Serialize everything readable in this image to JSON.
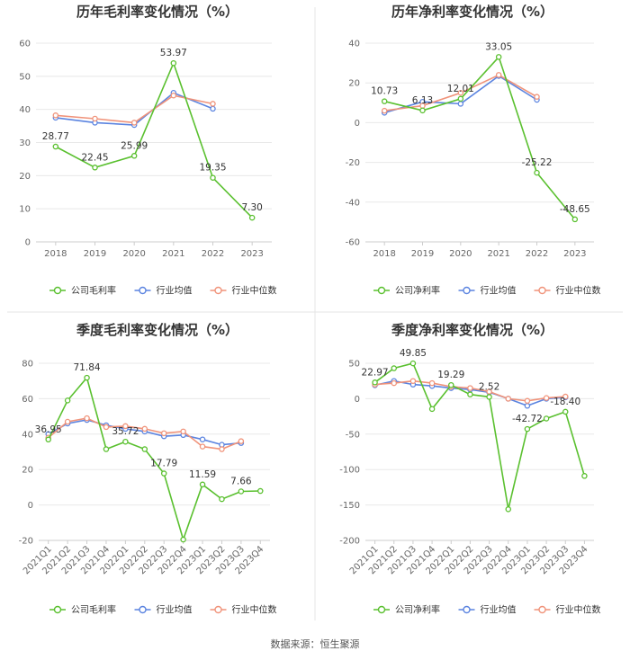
{
  "chart_data": [
    {
      "type": "line",
      "title": "历年毛利率变化情况（%）",
      "categories": [
        "2018",
        "2019",
        "2020",
        "2021",
        "2022",
        "2023"
      ],
      "ylim": [
        0,
        60
      ],
      "yticks": [
        0,
        10,
        20,
        30,
        40,
        50,
        60
      ],
      "series": [
        {
          "name": "公司毛利率",
          "color": "#5ac02f",
          "values": [
            28.77,
            22.45,
            25.99,
            53.97,
            19.35,
            7.3
          ],
          "labels": [
            "28.77",
            "22.45",
            "25.99",
            "53.97",
            "19.35",
            "7.30"
          ]
        },
        {
          "name": "行业均值",
          "color": "#5b84e0",
          "values": [
            37.5,
            36.0,
            35.3,
            45.0,
            40.2,
            null
          ]
        },
        {
          "name": "行业中位数",
          "color": "#f0937a",
          "values": [
            38.2,
            37.2,
            36.0,
            44.2,
            41.7,
            null
          ]
        }
      ]
    },
    {
      "type": "line",
      "title": "历年净利率变化情况（%）",
      "categories": [
        "2018",
        "2019",
        "2020",
        "2021",
        "2022",
        "2023"
      ],
      "ylim": [
        -60,
        40
      ],
      "yticks": [
        -60,
        -40,
        -20,
        0,
        20,
        40
      ],
      "series": [
        {
          "name": "公司净利率",
          "color": "#5ac02f",
          "values": [
            10.73,
            6.13,
            12.01,
            33.05,
            -25.22,
            -48.65
          ],
          "labels": [
            "10.73",
            "6.13",
            "12.01",
            "33.05",
            "-25.22",
            "-48.65"
          ]
        },
        {
          "name": "行业均值",
          "color": "#5b84e0",
          "values": [
            5.0,
            10.5,
            9.5,
            23.5,
            11.5,
            null
          ]
        },
        {
          "name": "行业中位数",
          "color": "#f0937a",
          "values": [
            6.0,
            8.5,
            15.0,
            24.0,
            13.0,
            null
          ]
        }
      ]
    },
    {
      "type": "line",
      "title": "季度毛利率变化情况（%）",
      "categories": [
        "2021Q1",
        "2021Q2",
        "2021Q3",
        "2021Q4",
        "2022Q1",
        "2022Q2",
        "2022Q3",
        "2022Q4",
        "2023Q1",
        "2023Q2",
        "2023Q3",
        "2023Q4"
      ],
      "ylim": [
        -20,
        80
      ],
      "yticks": [
        -20,
        0,
        20,
        40,
        60,
        80
      ],
      "series": [
        {
          "name": "公司毛利率",
          "color": "#5ac02f",
          "values": [
            36.95,
            59.0,
            71.84,
            31.5,
            35.72,
            31.5,
            17.79,
            -19.5,
            11.59,
            3.3,
            7.66,
            7.9
          ],
          "labels": [
            "36.95",
            "",
            "71.84",
            "",
            "35.72",
            "",
            "17.79",
            "",
            "11.59",
            "",
            "7.66",
            ""
          ]
        },
        {
          "name": "行业均值",
          "color": "#5b84e0",
          "values": [
            40.0,
            46.0,
            48.0,
            45.0,
            43.0,
            41.5,
            38.8,
            39.5,
            37.0,
            34.0,
            35.0,
            null
          ]
        },
        {
          "name": "行业中位数",
          "color": "#f0937a",
          "values": [
            38.0,
            47.0,
            49.0,
            44.0,
            44.5,
            43.0,
            40.5,
            41.5,
            33.0,
            31.5,
            36.0,
            null
          ]
        }
      ]
    },
    {
      "type": "line",
      "title": "季度净利率变化情况（%）",
      "categories": [
        "2021Q1",
        "2021Q2",
        "2021Q3",
        "2021Q4",
        "2022Q1",
        "2022Q2",
        "2022Q3",
        "2022Q4",
        "2023Q1",
        "2023Q2",
        "2023Q3",
        "2023Q4"
      ],
      "ylim": [
        -200,
        50
      ],
      "yticks": [
        -200,
        -150,
        -100,
        -50,
        0,
        50
      ],
      "series": [
        {
          "name": "公司净利率",
          "color": "#5ac02f",
          "values": [
            22.97,
            43.0,
            49.85,
            -14.5,
            19.29,
            6.0,
            2.52,
            -156.0,
            -42.72,
            -28.0,
            -18.4,
            -109.0
          ],
          "labels": [
            "22.97",
            "",
            "49.85",
            "",
            "19.29",
            "",
            "2.52",
            "",
            "-42.72",
            "",
            "-18.40",
            ""
          ]
        },
        {
          "name": "行业均值",
          "color": "#5b84e0",
          "values": [
            19.0,
            25.0,
            20.0,
            18.0,
            15.0,
            13.0,
            9.0,
            0.0,
            -10.0,
            0.0,
            2.0,
            null
          ]
        },
        {
          "name": "行业中位数",
          "color": "#f0937a",
          "values": [
            20.0,
            22.0,
            25.0,
            22.0,
            17.0,
            15.0,
            10.0,
            0.0,
            -3.0,
            1.0,
            3.0,
            null
          ]
        }
      ]
    }
  ],
  "source": "数据来源：恒生聚源"
}
